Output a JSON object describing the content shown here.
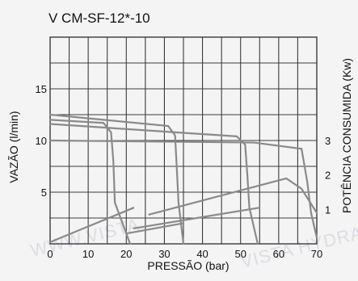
{
  "chart_data": {
    "type": "line",
    "title": "V CM-SF-12*-10",
    "xlabel": "PRESSÃO (bar)",
    "ylabel": "VAZÃO (l/min)",
    "y2label": "POTÊNCIA CONSUMIDA (Kw)",
    "xlim": [
      0,
      70
    ],
    "ylim": [
      0,
      20
    ],
    "y2lim": [
      0,
      6
    ],
    "x_ticks": [
      0,
      10,
      20,
      30,
      40,
      50,
      60,
      70
    ],
    "y_ticks": [
      5,
      10,
      15
    ],
    "y2_ticks": [
      1,
      2,
      3
    ],
    "grid": true,
    "flow_curves": [
      {
        "x": [
          0,
          14,
          16,
          16.6,
          17,
          21
        ],
        "y": [
          12,
          11.7,
          10.8,
          8,
          4,
          0
        ]
      },
      {
        "x": [
          0,
          31,
          32.8,
          33.3,
          33.7,
          35
        ],
        "y": [
          12.5,
          11.4,
          10.5,
          7,
          4,
          0
        ]
      },
      {
        "x": [
          0,
          49,
          51.2,
          51.8,
          52.3,
          54.5
        ],
        "y": [
          11.6,
          10.4,
          9.6,
          6.5,
          3.5,
          0
        ]
      },
      {
        "x": [
          0,
          53.5,
          66,
          67.5,
          68.5,
          70
        ],
        "y": [
          10,
          9.8,
          9.2,
          6,
          3,
          0.6
        ]
      }
    ],
    "power_curves": [
      {
        "x": [
          0,
          22,
          21.8
        ],
        "y": [
          0.05,
          1.05,
          1.05
        ]
      },
      {
        "x": [
          20,
          35
        ],
        "y": [
          0.3,
          0.6
        ]
      },
      {
        "x": [
          22,
          55
        ],
        "y": [
          0.45,
          1.05
        ]
      },
      {
        "x": [
          26,
          62,
          66,
          70
        ],
        "y": [
          0.85,
          1.9,
          1.6,
          0.9
        ]
      }
    ]
  },
  "watermark": {
    "left": "WWW.VISTA",
    "right": "VISTA HYDRAULIC"
  }
}
